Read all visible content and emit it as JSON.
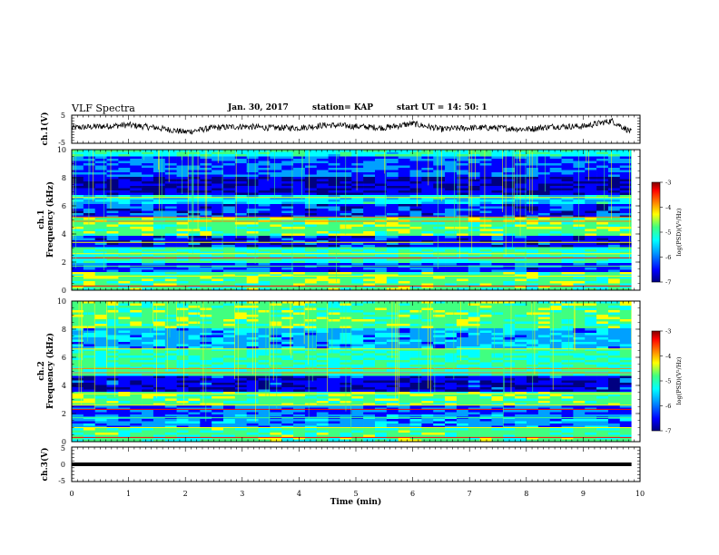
{
  "header": {
    "title": "VLF Spectra",
    "date": "Jan. 30, 2017",
    "station": "station= KAP",
    "start_ut": "start  UT =   14: 50: 1"
  },
  "chart_data": [
    {
      "type": "line",
      "panel": "ch1-waveform",
      "ylabel": "ch.1(V)",
      "xlim": [
        0,
        10
      ],
      "ylim": [
        -5,
        5
      ],
      "y_ticks": [
        "5",
        "-5"
      ],
      "x_end": 9.85,
      "series": [
        {
          "x": [
            0,
            0.5,
            1,
            1.5,
            2,
            2.5,
            3,
            3.5,
            4,
            4.5,
            5,
            5.5,
            6,
            6.5,
            7,
            7.5,
            8,
            8.5,
            9,
            9.5,
            9.85
          ],
          "values": [
            0.5,
            1.0,
            1.5,
            0.5,
            -1.0,
            0.5,
            1.0,
            0.5,
            0.5,
            1.5,
            1.0,
            0.5,
            2.0,
            0.0,
            0.5,
            0.5,
            0.0,
            1.0,
            1.0,
            3.0,
            -1.0
          ]
        }
      ]
    },
    {
      "type": "heatmap",
      "panel": "ch1-spectrogram",
      "ylabel_line1": "ch.1",
      "ylabel_line2": "Frequency  (kHz)",
      "xlim": [
        0,
        10
      ],
      "ylim": [
        0,
        10
      ],
      "y_ticks": [
        "0",
        "2",
        "4",
        "6",
        "8",
        "10"
      ],
      "x_end": 9.85,
      "colorbar": {
        "min": -7,
        "max": -3,
        "ticks": [
          "-3",
          "-4",
          "-5",
          "-6",
          "-7"
        ],
        "label": "log(PSD)(V²/Hz)"
      }
    },
    {
      "type": "heatmap",
      "panel": "ch2-spectrogram",
      "ylabel_line1": "ch.2",
      "ylabel_line2": "Frequency  (kHz)",
      "xlim": [
        0,
        10
      ],
      "ylim": [
        0,
        10
      ],
      "y_ticks": [
        "0",
        "2",
        "4",
        "6",
        "8",
        "10"
      ],
      "x_end": 9.85,
      "colorbar": {
        "min": -7,
        "max": -3,
        "ticks": [
          "-3",
          "-4",
          "-5",
          "-6",
          "-7"
        ],
        "label": "log(PSD)(V²/Hz)"
      }
    },
    {
      "type": "line",
      "panel": "ch3-waveform",
      "ylabel": "ch.3(V)",
      "xlim": [
        0,
        10
      ],
      "ylim": [
        -5,
        5
      ],
      "y_ticks": [
        "5",
        "0",
        "-5"
      ],
      "x_end": 9.85,
      "series": [
        {
          "x": [
            0,
            9.85
          ],
          "values": [
            0,
            0
          ]
        }
      ]
    }
  ],
  "xaxis": {
    "label": "Time  (min)",
    "ticks": [
      "0",
      "1",
      "2",
      "3",
      "4",
      "5",
      "6",
      "7",
      "8",
      "9",
      "10"
    ]
  },
  "colors": {
    "spectrogram_scale": [
      "#000080",
      "#0000ff",
      "#00a0ff",
      "#00ffff",
      "#40ff80",
      "#ffff00",
      "#ff8000",
      "#ff0000",
      "#800000"
    ],
    "trace": "#000000"
  }
}
